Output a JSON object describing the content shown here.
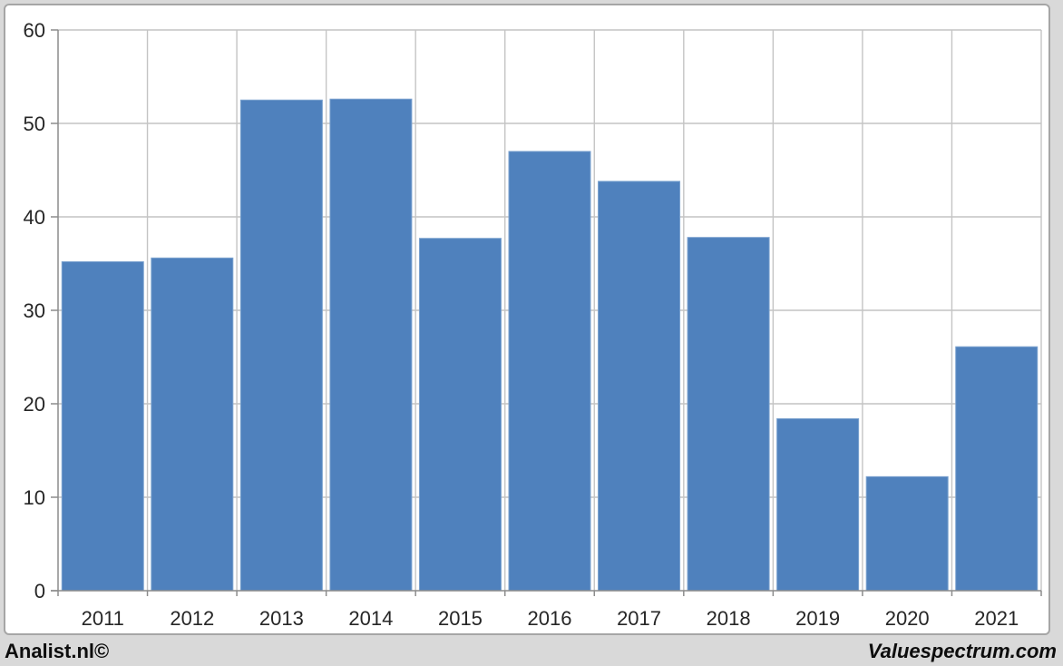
{
  "footer": {
    "left_credit": "Analist.nl©",
    "right_credit": "Valuespectrum.com"
  },
  "chart_data": {
    "type": "bar",
    "title": "",
    "xlabel": "",
    "ylabel": "",
    "categories": [
      "2011",
      "2012",
      "2013",
      "2014",
      "2015",
      "2016",
      "2017",
      "2018",
      "2019",
      "2020",
      "2021"
    ],
    "values": [
      35.2,
      35.6,
      52.5,
      52.6,
      37.7,
      47.0,
      43.8,
      37.8,
      18.4,
      12.2,
      26.1
    ],
    "ylim": [
      0,
      60
    ],
    "yticks": [
      0,
      10,
      20,
      30,
      40,
      50,
      60
    ],
    "grid": true,
    "legend": "none",
    "bar_color": "#4f81bd",
    "bar_edge_color": "#7ba2cf",
    "gridline_color": "#c4c4c4",
    "axis_color": "#8c8c8c",
    "tick_label_color": "#262626",
    "plot_background": "#ffffff",
    "outer_background": "#d9d9d9"
  }
}
